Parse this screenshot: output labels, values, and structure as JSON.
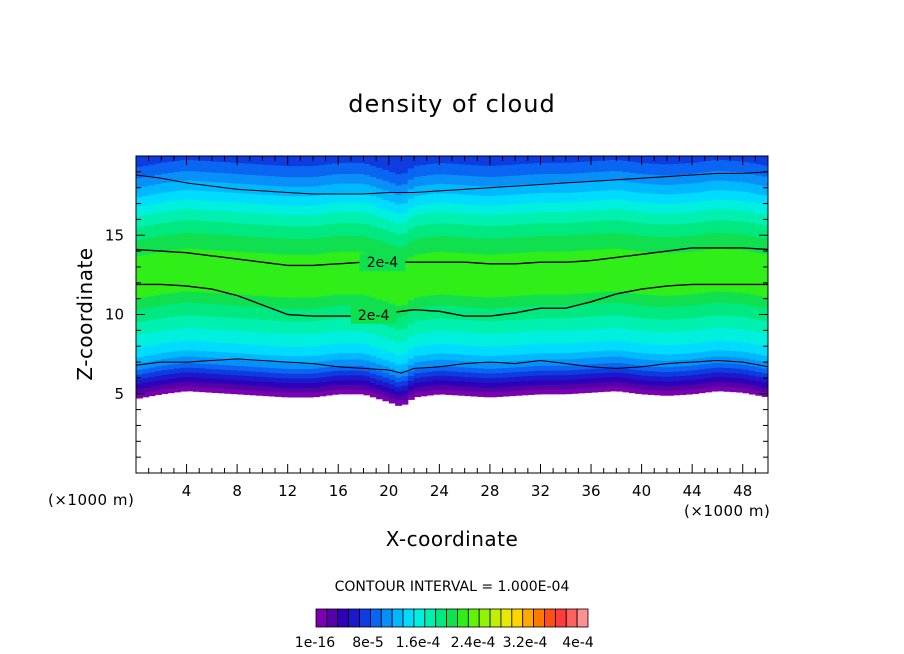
{
  "chart_data": {
    "type": "heatmap",
    "title": "density of cloud",
    "xlabel": "X-coordinate",
    "ylabel": "Z-coordinate",
    "x_unit": "(×1000 m)",
    "y_unit": "(×1000 m)",
    "xlim": [
      0,
      50
    ],
    "ylim": [
      0,
      20
    ],
    "x_ticks": [
      4,
      8,
      12,
      16,
      20,
      24,
      28,
      32,
      36,
      40,
      44,
      48
    ],
    "y_ticks": [
      5,
      10,
      15
    ],
    "contour_interval_text": "CONTOUR INTERVAL = 1.000E-04",
    "contour_labels": [
      "2e-4",
      "2e-4"
    ],
    "colorbar": {
      "labels": [
        "1e-16",
        "8e-5",
        "1.6e-4",
        "2.4e-4",
        "3.2e-4",
        "4e-4"
      ],
      "colors": [
        "#7a00b0",
        "#5500a8",
        "#2e00b8",
        "#1a1acc",
        "#0f3ce0",
        "#0a66f2",
        "#0890f8",
        "#00b8ff",
        "#00dcff",
        "#00f0e0",
        "#00f0b0",
        "#00e880",
        "#10e050",
        "#30ee18",
        "#60f500",
        "#90f500",
        "#c0f000",
        "#e8e800",
        "#ffd400",
        "#ffa800",
        "#ff7800",
        "#ff5014",
        "#ff3c3c",
        "#ff6060",
        "#ff9090"
      ]
    },
    "cloud_profile": {
      "x": [
        0,
        2,
        4,
        6,
        8,
        10,
        12,
        14,
        16,
        18,
        20,
        21,
        22,
        24,
        26,
        28,
        30,
        32,
        34,
        36,
        38,
        40,
        42,
        44,
        46,
        48,
        50
      ],
      "cloud_base": [
        4.7,
        5.0,
        5.2,
        5.1,
        5.0,
        4.9,
        4.8,
        4.8,
        5.0,
        5.0,
        4.5,
        4.2,
        4.8,
        5.0,
        4.9,
        4.8,
        4.9,
        5.0,
        5.0,
        5.1,
        5.2,
        5.0,
        4.9,
        5.0,
        5.2,
        5.1,
        4.8
      ],
      "cloud_top": [
        19.5,
        19.5,
        19.5,
        19.5,
        19.5,
        19.5,
        19.5,
        19.5,
        19.5,
        19.5,
        19.5,
        19.5,
        19.5,
        19.5,
        19.5,
        19.5,
        19.5,
        19.5,
        19.5,
        19.5,
        19.5,
        19.5,
        19.5,
        19.5,
        19.5,
        19.5,
        19.5
      ],
      "contour_upper_2e4": [
        14.1,
        14.0,
        13.9,
        13.7,
        13.5,
        13.3,
        13.1,
        13.1,
        13.2,
        13.3,
        13.3,
        13.3,
        13.3,
        13.3,
        13.3,
        13.2,
        13.2,
        13.3,
        13.3,
        13.4,
        13.6,
        13.8,
        14.0,
        14.2,
        14.2,
        14.2,
        14.1
      ],
      "contour_lower_2e4": [
        11.9,
        11.9,
        11.8,
        11.6,
        11.2,
        10.6,
        10.0,
        9.9,
        9.9,
        9.9,
        10.1,
        10.2,
        10.3,
        10.2,
        9.9,
        9.9,
        10.1,
        10.4,
        10.4,
        10.8,
        11.3,
        11.6,
        11.8,
        11.9,
        11.9,
        11.9,
        11.9
      ],
      "contour_top": [
        18.8,
        18.6,
        18.3,
        18.1,
        17.9,
        17.8,
        17.7,
        17.6,
        17.6,
        17.6,
        17.7,
        17.7,
        17.7,
        17.8,
        17.9,
        18.0,
        18.1,
        18.2,
        18.3,
        18.4,
        18.5,
        18.6,
        18.7,
        18.8,
        18.9,
        18.9,
        19.0
      ],
      "contour_bottom": [
        6.8,
        7.0,
        7.0,
        7.1,
        7.2,
        7.1,
        7.0,
        6.9,
        6.7,
        6.6,
        6.5,
        6.3,
        6.6,
        6.7,
        6.9,
        7.0,
        6.9,
        7.1,
        6.9,
        6.7,
        6.6,
        6.7,
        6.9,
        7.0,
        7.1,
        7.0,
        6.7
      ]
    }
  }
}
